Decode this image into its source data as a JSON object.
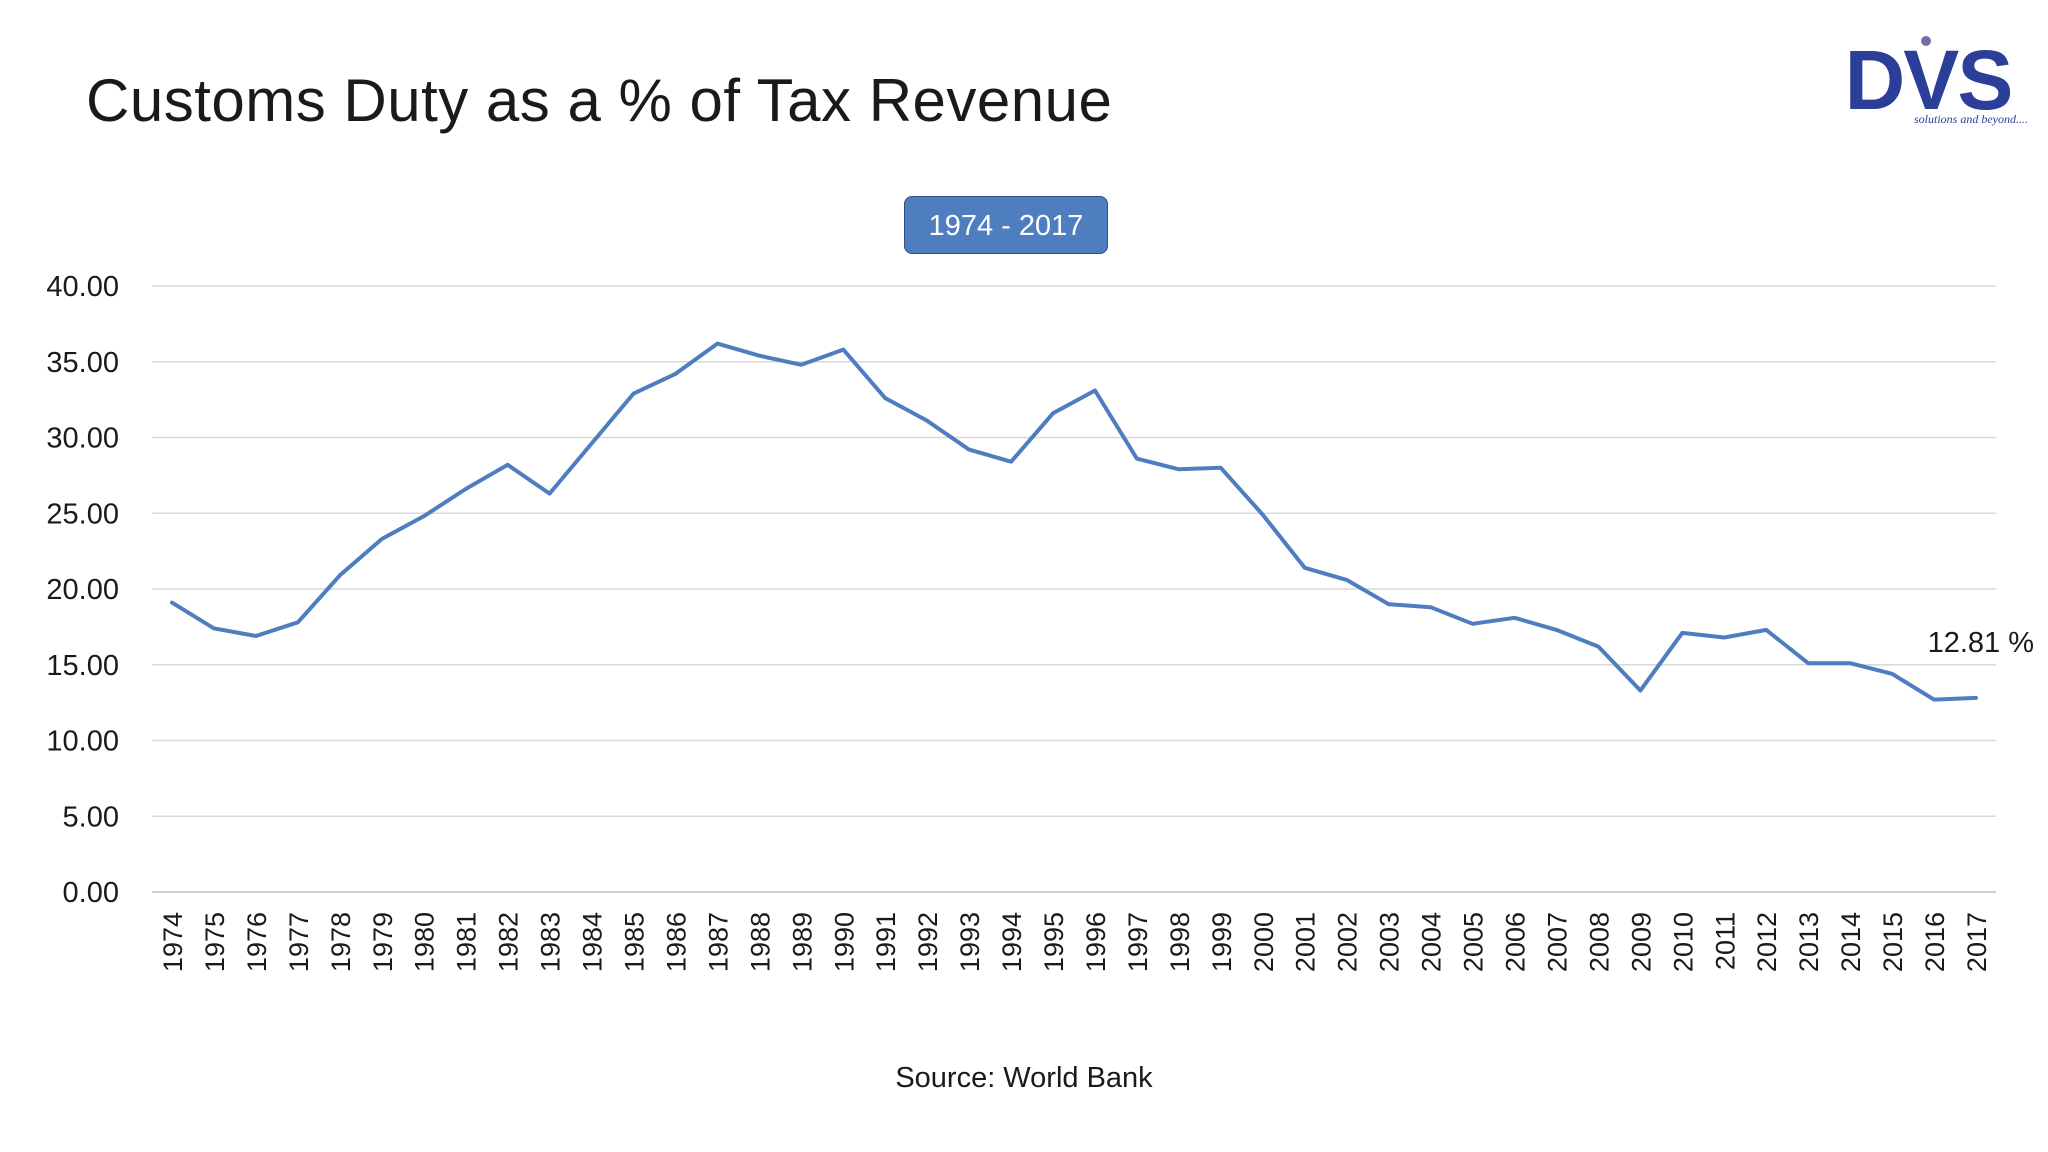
{
  "slide": {
    "title": "Customs Duty as a % of Tax Revenue",
    "source": "Source: World Bank",
    "period_label": "1974 - 2017"
  },
  "logo": {
    "text": "DVS",
    "tagline": "solutions and beyond....",
    "color": "#2b3f99"
  },
  "chart_data": {
    "type": "line",
    "title": "",
    "xlabel": "",
    "ylabel": "",
    "ylim": [
      0,
      40
    ],
    "yticks": [
      "0.00",
      "5.00",
      "10.00",
      "15.00",
      "20.00",
      "25.00",
      "30.00",
      "35.00",
      "40.00"
    ],
    "grid": true,
    "line_color": "#4e7dc0",
    "categories": [
      "1974",
      "1975",
      "1976",
      "1977",
      "1978",
      "1979",
      "1980",
      "1981",
      "1982",
      "1983",
      "1984",
      "1985",
      "1986",
      "1987",
      "1988",
      "1989",
      "1990",
      "1991",
      "1992",
      "1993",
      "1994",
      "1995",
      "1996",
      "1997",
      "1998",
      "1999",
      "2000",
      "2001",
      "2002",
      "2003",
      "2004",
      "2005",
      "2006",
      "2007",
      "2008",
      "2009",
      "2010",
      "2011",
      "2012",
      "2013",
      "2014",
      "2015",
      "2016",
      "2017"
    ],
    "values": [
      19.1,
      17.4,
      16.9,
      17.8,
      20.9,
      23.3,
      24.8,
      26.6,
      28.2,
      26.3,
      29.6,
      32.9,
      34.2,
      36.2,
      35.4,
      34.8,
      35.8,
      32.6,
      31.1,
      29.2,
      28.4,
      31.6,
      33.1,
      28.6,
      27.9,
      28.0,
      24.9,
      21.4,
      20.6,
      19.0,
      18.8,
      17.7,
      18.1,
      17.3,
      16.2,
      13.3,
      17.1,
      16.8,
      17.3,
      15.1,
      15.1,
      14.4,
      12.7,
      12.81
    ],
    "annotations": [
      {
        "category": "2017",
        "text": "12.81 %"
      }
    ]
  }
}
